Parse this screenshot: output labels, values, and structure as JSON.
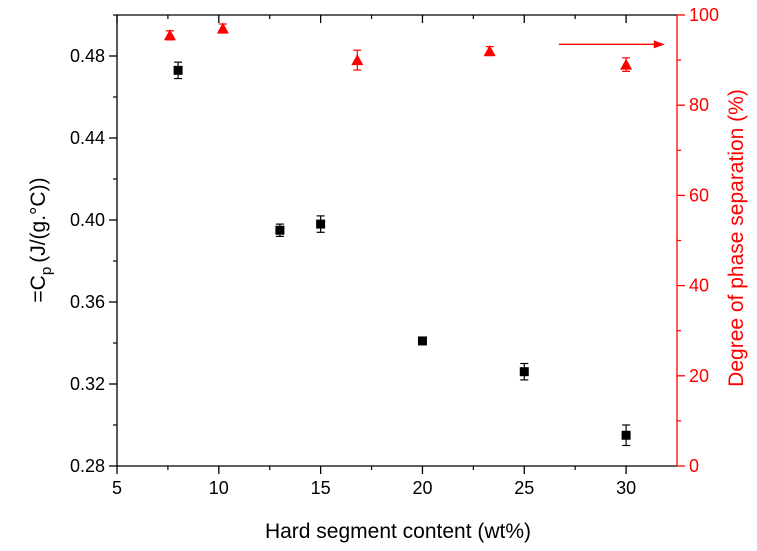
{
  "chart_data": {
    "type": "scatter",
    "title": "",
    "xlabel": "Hard segment content (wt%)",
    "ylabel": {
      "prefix": "=C",
      "sub": "p",
      "suffix": "(J/(g.°C))"
    },
    "y2label": "Degree of phase separation (%)",
    "xlim": [
      5,
      32.5
    ],
    "ylim": [
      0.28,
      0.5
    ],
    "y2lim": [
      0,
      100
    ],
    "xticks": [
      5,
      10,
      15,
      20,
      25,
      30
    ],
    "yticks": [
      0.28,
      0.32,
      0.36,
      0.4,
      0.44,
      0.48
    ],
    "y2ticks": [
      0,
      20,
      40,
      60,
      80,
      100
    ],
    "grid": false,
    "colors": {
      "primary": "#000000",
      "secondary": "#ff0000"
    },
    "series": [
      {
        "axis": "left",
        "marker": "square",
        "points": [
          {
            "x": 8,
            "y": 0.473,
            "err": 0.004
          },
          {
            "x": 13,
            "y": 0.395,
            "err": 0.003
          },
          {
            "x": 15,
            "y": 0.398,
            "err": 0.004
          },
          {
            "x": 20,
            "y": 0.341,
            "err": 0.001
          },
          {
            "x": 25,
            "y": 0.326,
            "err": 0.004
          },
          {
            "x": 30,
            "y": 0.295,
            "err": 0.005
          }
        ]
      },
      {
        "axis": "right",
        "marker": "triangle",
        "points": [
          {
            "x": 7.6,
            "y": 95.5,
            "err": 1.0
          },
          {
            "x": 10.2,
            "y": 97.0,
            "err": 1.0
          },
          {
            "x": 16.8,
            "y": 90.0,
            "err": 2.2
          },
          {
            "x": 23.3,
            "y": 92.0,
            "err": 1.0
          },
          {
            "x": 30.0,
            "y": 89.0,
            "err": 1.5
          }
        ]
      }
    ],
    "annotations": [
      {
        "type": "arrow",
        "direction": "right",
        "points_to": "right-axis",
        "x_start": 26.7,
        "x_end": 31.9,
        "y2": 93.5
      }
    ]
  }
}
